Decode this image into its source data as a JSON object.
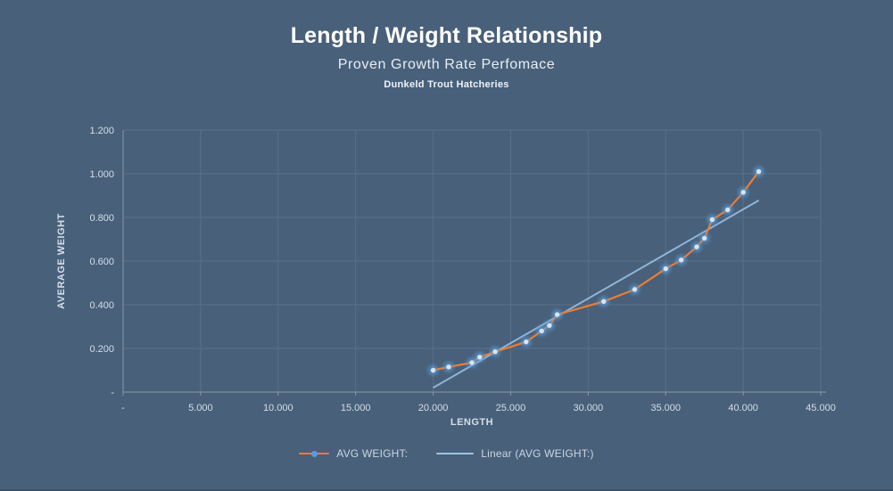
{
  "colors": {
    "background": "#48607A",
    "gridline": "#5A7087",
    "axis": "#8A97A5",
    "tick_text": "#D5DEE8",
    "title_text": "#FFFFFF",
    "series_orange": "#ED7D31",
    "marker_glow": "#5B9BD5",
    "marker_core": "#D6E5F5",
    "trendline_blue": "#9DC3E6",
    "legend_text": "#C9D5E1"
  },
  "chart_data": {
    "type": "line",
    "title": "Length / Weight Relationship",
    "subtitle": "Proven Growth Rate Perfomace",
    "source": "Dunkeld Trout Hatcheries",
    "xlabel": "LENGTH",
    "ylabel": "AVERAGE WEIGHT",
    "xlim": [
      0,
      45
    ],
    "ylim": [
      0,
      1.2
    ],
    "grid": true,
    "legend_position": "bottom",
    "x_ticks": [
      {
        "value": 0,
        "label": "-"
      },
      {
        "value": 5,
        "label": "5.000"
      },
      {
        "value": 10,
        "label": "10.000"
      },
      {
        "value": 15,
        "label": "15.000"
      },
      {
        "value": 20,
        "label": "20.000"
      },
      {
        "value": 25,
        "label": "25.000"
      },
      {
        "value": 30,
        "label": "30.000"
      },
      {
        "value": 35,
        "label": "35.000"
      },
      {
        "value": 40,
        "label": "40.000"
      },
      {
        "value": 45,
        "label": "45.000"
      }
    ],
    "y_ticks": [
      {
        "value": 0,
        "label": "-"
      },
      {
        "value": 0.2,
        "label": "0.200"
      },
      {
        "value": 0.4,
        "label": "0.400"
      },
      {
        "value": 0.6,
        "label": "0.600"
      },
      {
        "value": 0.8,
        "label": "0.800"
      },
      {
        "value": 1.0,
        "label": "1.000"
      },
      {
        "value": 1.2,
        "label": "1.200"
      }
    ],
    "series": [
      {
        "name": "AVG WEIGHT:",
        "type": "line-with-markers",
        "color": "#ED7D31",
        "marker": "glow-dot",
        "points": [
          [
            20,
            0.1
          ],
          [
            21,
            0.115
          ],
          [
            22.5,
            0.135
          ],
          [
            23,
            0.16
          ],
          [
            24,
            0.185
          ],
          [
            26,
            0.23
          ],
          [
            27,
            0.28
          ],
          [
            27.5,
            0.305
          ],
          [
            28,
            0.355
          ],
          [
            31,
            0.415
          ],
          [
            33,
            0.47
          ],
          [
            35,
            0.565
          ],
          [
            36,
            0.605
          ],
          [
            37,
            0.665
          ],
          [
            37.5,
            0.705
          ],
          [
            38,
            0.79
          ],
          [
            39,
            0.835
          ],
          [
            40,
            0.915
          ],
          [
            41,
            1.01
          ]
        ]
      },
      {
        "name": "Linear (AVG WEIGHT:)",
        "type": "trendline",
        "color": "#9DC3E6",
        "points": [
          [
            20,
            0.02
          ],
          [
            41,
            0.878
          ]
        ]
      }
    ]
  }
}
